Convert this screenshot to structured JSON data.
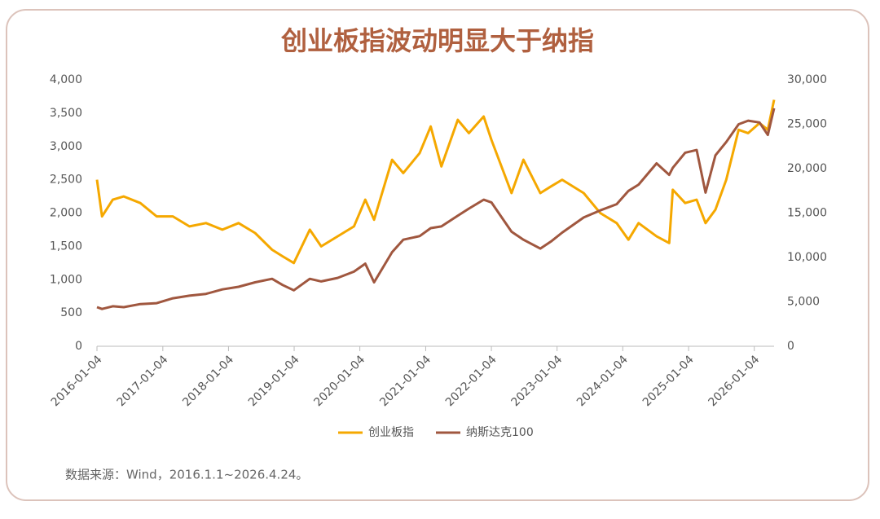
{
  "chart_data": {
    "type": "line",
    "title": "创业板指波动明显大于纳指",
    "note": "数据来源：Wind，2016.1.1~2026.4.24。",
    "x": [
      "2016-01-04",
      "2016-02-01",
      "2016-04-01",
      "2016-06-01",
      "2016-09-01",
      "2016-12-01",
      "2017-03-01",
      "2017-06-01",
      "2017-09-01",
      "2017-12-01",
      "2018-03-01",
      "2018-06-01",
      "2018-09-03",
      "2018-11-01",
      "2019-01-02",
      "2019-04-01",
      "2019-06-03",
      "2019-09-02",
      "2019-12-02",
      "2020-02-03",
      "2020-03-23",
      "2020-07-01",
      "2020-09-01",
      "2020-12-01",
      "2021-02-01",
      "2021-04-01",
      "2021-07-01",
      "2021-09-01",
      "2021-11-22",
      "2022-01-04",
      "2022-04-26",
      "2022-07-01",
      "2022-10-03",
      "2022-12-01",
      "2023-02-01",
      "2023-06-01",
      "2023-09-01",
      "2023-12-01",
      "2024-02-05",
      "2024-04-01",
      "2024-07-10",
      "2024-09-18",
      "2024-10-08",
      "2024-12-16",
      "2025-02-18",
      "2025-04-08",
      "2025-06-02",
      "2025-08-01",
      "2025-10-09",
      "2025-12-01",
      "2026-02-02",
      "2026-03-20",
      "2026-04-24"
    ],
    "series": [
      {
        "name": "创业板指",
        "color": "#f5a800",
        "axis": "y",
        "values": [
          2500,
          1950,
          2200,
          2250,
          2150,
          1950,
          1950,
          1800,
          1850,
          1750,
          1850,
          1700,
          1450,
          1350,
          1250,
          1750,
          1500,
          1650,
          1800,
          2200,
          1900,
          2800,
          2600,
          2900,
          3300,
          2700,
          3400,
          3200,
          3450,
          3100,
          2300,
          2800,
          2300,
          2400,
          2500,
          2300,
          2000,
          1850,
          1600,
          1850,
          1650,
          1550,
          2350,
          2150,
          2200,
          1850,
          2050,
          2500,
          3250,
          3200,
          3350,
          3250,
          3700
        ]
      },
      {
        "name": "纳斯达克100",
        "color": "#a0573f",
        "axis": "y2",
        "values": [
          4400,
          4200,
          4500,
          4400,
          4750,
          4850,
          5400,
          5700,
          5900,
          6400,
          6700,
          7200,
          7600,
          6900,
          6300,
          7600,
          7300,
          7700,
          8400,
          9300,
          7200,
          10600,
          12000,
          12400,
          13300,
          13500,
          14700,
          15500,
          16500,
          16200,
          12900,
          12000,
          11000,
          11800,
          12800,
          14500,
          15300,
          16000,
          17500,
          18200,
          20600,
          19300,
          20100,
          21800,
          22100,
          17300,
          21500,
          23000,
          25000,
          25400,
          25200,
          23800,
          26800
        ]
      }
    ],
    "xlim": [
      "2016-01-04",
      "2026-04-24"
    ],
    "xticks": [
      "2016-01-04",
      "2017-01-04",
      "2018-01-04",
      "2019-01-04",
      "2020-01-04",
      "2021-01-04",
      "2022-01-04",
      "2023-01-04",
      "2024-01-04",
      "2025-01-04",
      "2026-01-04"
    ],
    "ylim": [
      0,
      4000
    ],
    "yticks": [
      0,
      500,
      {
        "value": 1000,
        "label": "1,000"
      },
      {
        "value": 1500,
        "label": "1,500"
      },
      {
        "value": 2000,
        "label": "2,000"
      },
      {
        "value": 2500,
        "label": "2,500"
      },
      {
        "value": 3000,
        "label": "3,000"
      },
      {
        "value": 3500,
        "label": "3,500"
      },
      {
        "value": 4000,
        "label": "4,000"
      }
    ],
    "y2lim": [
      0,
      30000
    ],
    "y2ticks": [
      0,
      {
        "value": 5000,
        "label": "5,000"
      },
      {
        "value": 10000,
        "label": "10,000"
      },
      {
        "value": 15000,
        "label": "15,000"
      },
      {
        "value": 20000,
        "label": "20,000"
      },
      {
        "value": 25000,
        "label": "25,000"
      },
      {
        "value": 30000,
        "label": "30,000"
      }
    ],
    "legend": "bottom"
  }
}
